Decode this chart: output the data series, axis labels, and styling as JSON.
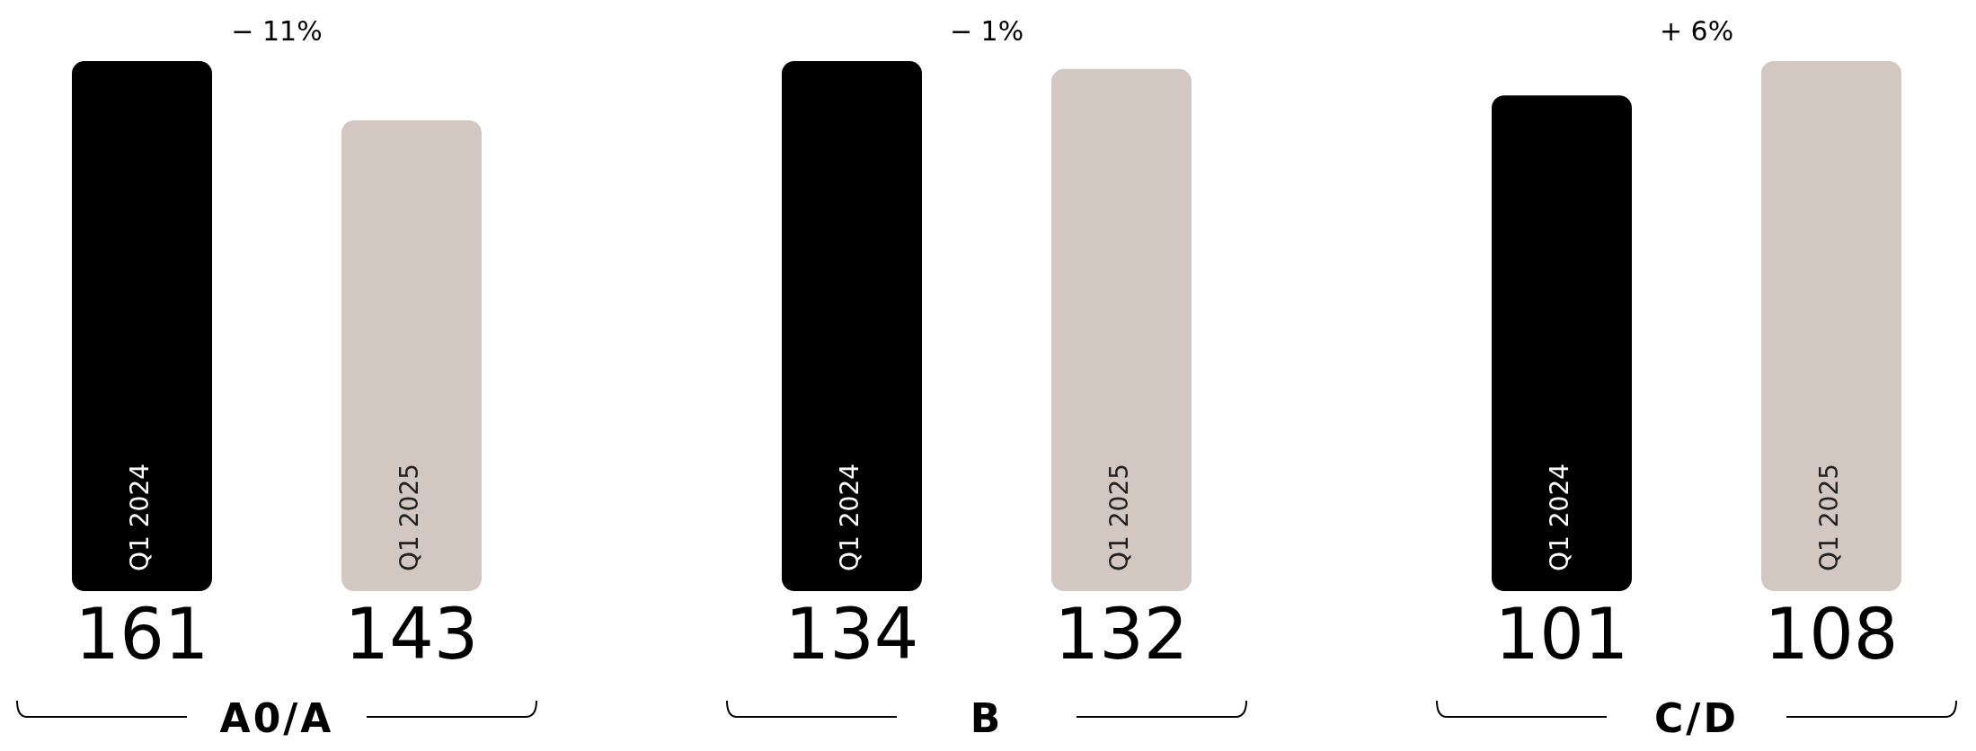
{
  "chart_data": [
    {
      "type": "bar",
      "xlabel": "A0/A",
      "categories": [
        "Q1 2024",
        "Q1 2025"
      ],
      "values": [
        161,
        143
      ],
      "colors": [
        "#000000",
        "#d3c7c1"
      ],
      "data_labels": true,
      "annotations": [
        "− 11%"
      ]
    },
    {
      "type": "bar",
      "xlabel": "B",
      "categories": [
        "Q1 2024",
        "Q1 2025"
      ],
      "values": [
        134,
        132
      ],
      "colors": [
        "#000000",
        "#d3c7c1"
      ],
      "data_labels": true,
      "annotations": [
        "− 1%"
      ]
    },
    {
      "type": "bar",
      "xlabel": "C/D",
      "categories": [
        "Q1 2024",
        "Q1 2025"
      ],
      "values": [
        101,
        108
      ],
      "colors": [
        "#000000",
        "#d3c7c1"
      ],
      "data_labels": true,
      "annotations": [
        "+ 6%"
      ]
    }
  ]
}
